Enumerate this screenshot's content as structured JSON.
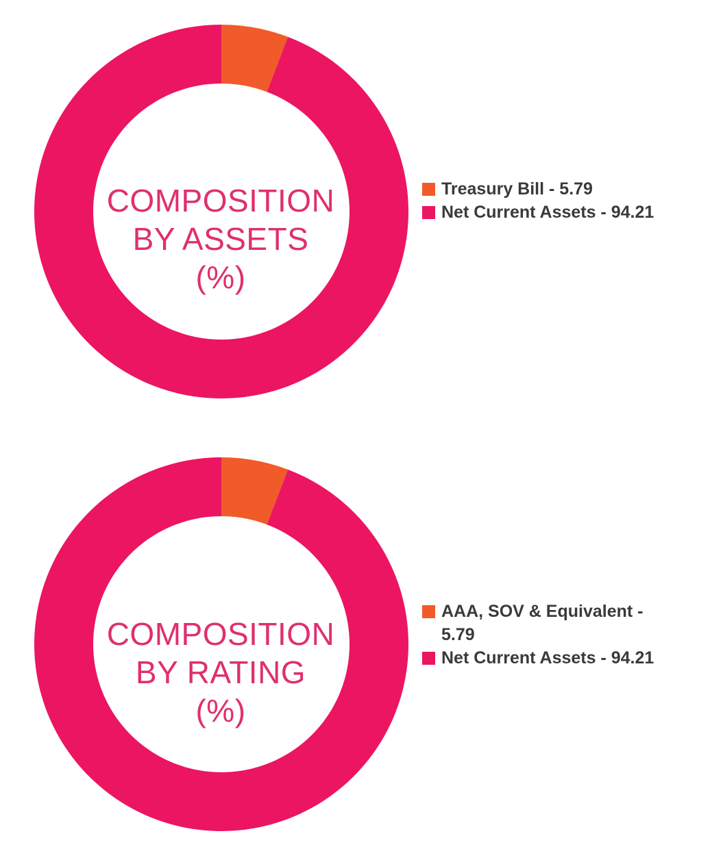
{
  "colors": {
    "primary": "#ec1561",
    "secondary": "#f15a29",
    "title": "#df2f6e",
    "legend_text": "#3a3a3a"
  },
  "charts": [
    {
      "title_lines": [
        "COMPOSITION",
        "BY ASSETS",
        "(%)"
      ],
      "legend": [
        {
          "label": "Treasury Bill - 5.79"
        },
        {
          "label": "Net Current Assets - 94.21"
        }
      ]
    },
    {
      "title_lines": [
        "COMPOSITION",
        "BY RATING",
        "(%)"
      ],
      "legend": [
        {
          "label": "AAA, SOV & Equivalent - 5.79"
        },
        {
          "label": "Net Current Assets - 94.21"
        }
      ]
    }
  ],
  "chart_data": [
    {
      "type": "pie",
      "title": "COMPOSITION BY ASSETS (%)",
      "slices": [
        {
          "name": "Treasury Bill",
          "value": 5.79,
          "color": "#f15a29"
        },
        {
          "name": "Net Current Assets",
          "value": 94.21,
          "color": "#ec1561"
        }
      ],
      "legend_position": "right"
    },
    {
      "type": "pie",
      "title": "COMPOSITION BY RATING (%)",
      "slices": [
        {
          "name": "AAA, SOV & Equivalent",
          "value": 5.79,
          "color": "#f15a29"
        },
        {
          "name": "Net Current Assets",
          "value": 94.21,
          "color": "#ec1561"
        }
      ],
      "legend_position": "right"
    }
  ]
}
